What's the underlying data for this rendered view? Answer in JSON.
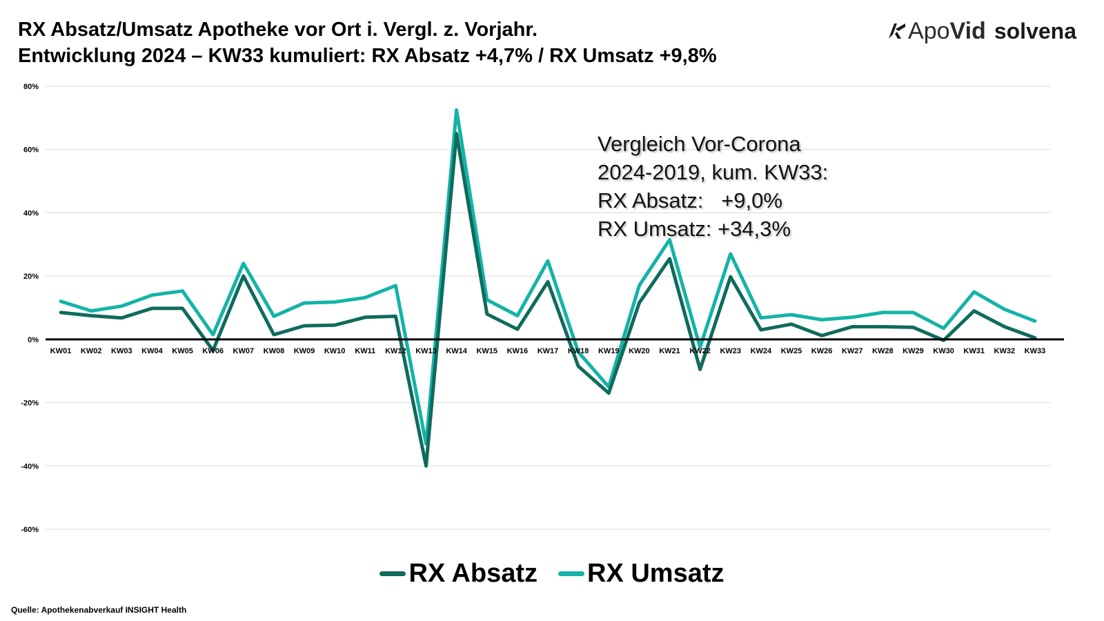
{
  "header": {
    "title_line1": "RX Absatz/Umsatz Apotheke vor Ort i. Vergl. z. Vorjahr.",
    "title_line2": "Entwicklung 2024 – KW33 kumuliert: RX Absatz +4,7% / RX Umsatz +9,8%"
  },
  "logo": {
    "apovid_prefix": "Apo",
    "apovid_suffix": "Vid",
    "solvena": "solvena"
  },
  "annotation": {
    "line1": "Vergleich Vor-Corona",
    "line2": "2024-2019, kum. KW33:",
    "line3": "RX Absatz:   +9,0%",
    "line4": "RX Umsatz: +34,3%"
  },
  "source": "Quelle: Apothekenabverkauf INSIGHT Health",
  "colors": {
    "absatz": "#0f6b5c",
    "umsatz": "#14b3a7",
    "axis": "#000000",
    "grid": "#d9d9d9"
  },
  "chart_data": {
    "type": "line",
    "categories": [
      "KW01",
      "KW02",
      "KW03",
      "KW04",
      "KW05",
      "KW06",
      "KW07",
      "KW08",
      "KW09",
      "KW10",
      "KW11",
      "KW12",
      "KW13",
      "KW14",
      "KW15",
      "KW16",
      "KW17",
      "KW18",
      "KW19",
      "KW20",
      "KW21",
      "KW22",
      "KW23",
      "KW24",
      "KW25",
      "KW26",
      "KW27",
      "KW28",
      "KW29",
      "KW30",
      "KW31",
      "KW32",
      "KW33"
    ],
    "series": [
      {
        "name": "RX Absatz",
        "values": [
          8.5,
          7.5,
          6.8,
          9.8,
          9.8,
          -3.5,
          20.0,
          1.5,
          4.3,
          4.5,
          7.0,
          7.3,
          -40.0,
          65.0,
          8.0,
          3.2,
          18.2,
          -8.5,
          -17.0,
          11.5,
          25.5,
          -9.5,
          19.8,
          3.0,
          4.8,
          1.2,
          4.0,
          4.0,
          3.8,
          -0.3,
          9.0,
          4.0,
          0.5
        ]
      },
      {
        "name": "RX Umsatz",
        "values": [
          12.0,
          9.0,
          10.5,
          14.0,
          15.3,
          1.5,
          24.0,
          7.3,
          11.5,
          11.8,
          13.2,
          17.0,
          -33.0,
          72.5,
          12.5,
          7.5,
          24.8,
          -4.0,
          -15.0,
          17.0,
          31.5,
          -2.5,
          27.0,
          6.8,
          7.8,
          6.2,
          7.0,
          8.5,
          8.5,
          3.5,
          15.0,
          9.5,
          5.8
        ]
      }
    ],
    "yticks": [
      "80%",
      "60%",
      "40%",
      "20%",
      "0%",
      "-20%",
      "-40%",
      "-60%"
    ],
    "ylim": [
      -60,
      80
    ],
    "grid": true,
    "legend_position": "bottom",
    "xlabel": "",
    "ylabel": ""
  }
}
